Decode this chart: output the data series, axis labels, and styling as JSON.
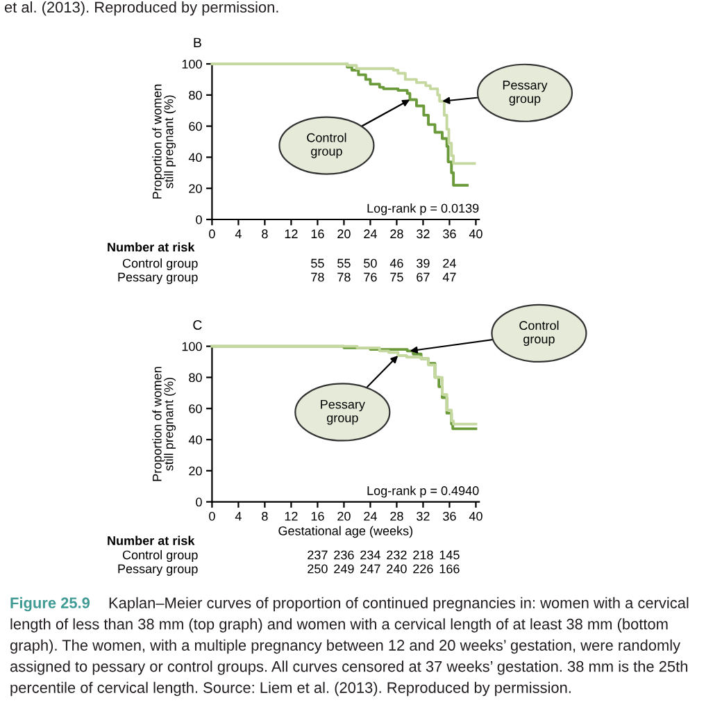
{
  "chart_data": [
    {
      "type": "step",
      "title": "B",
      "ylabel": "Proportion of women\nstill pregnant (%)",
      "xlim": [
        0,
        40.5
      ],
      "xticks": [
        0,
        4,
        8,
        12,
        16,
        20,
        24,
        28,
        32,
        36,
        40
      ],
      "ylim": [
        0,
        100
      ],
      "yticks": [
        0,
        20,
        40,
        60,
        80,
        100
      ],
      "series": [
        {
          "color": "#6b9a3a",
          "x": [
            0,
            20,
            20.5,
            21.2,
            22.2,
            23.3,
            24,
            25.4,
            26,
            28.2,
            29.6,
            30,
            31,
            32.1,
            32.8,
            33.8,
            34.9,
            35.6,
            35.8,
            36.3,
            36.6,
            38.7
          ],
          "values": [
            100,
            100,
            98,
            96,
            93,
            90,
            87,
            85,
            84,
            83,
            81,
            77,
            73,
            67,
            61,
            56,
            52,
            47,
            37,
            30,
            22,
            22
          ]
        },
        {
          "color": "#c5d8a0",
          "x": [
            0,
            20,
            20.5,
            21.9,
            27.5,
            28.2,
            29.3,
            31,
            32.4,
            33.1,
            34.2,
            34.5,
            35.2,
            35.6,
            35.9,
            36.3,
            36.6,
            39.8
          ],
          "values": [
            100,
            100,
            99,
            97,
            96,
            94,
            90,
            88,
            86,
            84,
            80,
            76,
            67,
            58,
            49,
            41,
            36,
            36
          ]
        }
      ],
      "annotations": [
        {
          "text": "Control group",
          "x": 30,
          "y": 77
        },
        {
          "text": "Pessary group",
          "x": 34.9,
          "y": 76
        },
        "Log-rank p = 0.0139",
        "et al. (2013). Reproduced by permission."
      ]
    },
    {
      "type": "other",
      "title": "Number at risk",
      "annotations": [
        "Control group",
        "55",
        "55",
        "50",
        "46",
        "39",
        "24",
        "Pessary group",
        "78",
        "78",
        "76",
        "75",
        "67",
        "47"
      ]
    },
    {
      "type": "step",
      "title": "C",
      "xlabel": "Gestational age (weeks)",
      "ylabel": "Proportion of women\nstill pregnant (%)",
      "xlim": [
        0,
        40.5
      ],
      "xticks": [
        0,
        4,
        8,
        12,
        16,
        20,
        24,
        28,
        32,
        36,
        40
      ],
      "ylim": [
        0,
        100
      ],
      "yticks": [
        0,
        20,
        40,
        60,
        80,
        100
      ],
      "series": [
        {
          "color": "#6b9a3a",
          "x": [
            0,
            12,
            20,
            24,
            27,
            29.6,
            30.5,
            31.7,
            32.8,
            33.8,
            34.4,
            34.9,
            35.6,
            36.3,
            36.5,
            40
          ],
          "values": [
            100,
            100,
            99,
            98,
            98,
            97,
            95,
            92,
            89,
            80,
            74,
            67,
            57,
            50,
            47,
            47
          ]
        },
        {
          "color": "#c5d8a0",
          "x": [
            0,
            16,
            22,
            25.4,
            26.8,
            28.2,
            29.5,
            31.7,
            32.8,
            33.8,
            34.9,
            35.6,
            36.3,
            36.6,
            40
          ],
          "values": [
            100,
            100,
            99,
            97,
            96,
            94,
            93,
            92,
            88,
            80,
            69,
            59,
            52,
            50,
            50
          ]
        }
      ],
      "annotations": [
        {
          "text": "Control group",
          "x": 30,
          "y": 97
        },
        {
          "text": "Pessary group",
          "x": 28.2,
          "y": 94
        },
        "Log-rank p = 0.4940",
        "Figure 25.9",
        "Kaplan–Meier curves of proportion of continued pregnancies in: women with a cervical",
        "length of less than 38 mm (top graph) and women with a cervical length of at least 38 mm (bottom\ngraph). The women, with a multiple pregnancy between 12 and 20 weeks’ gestation, were randomly\nassigned to pessary or control groups. All curves censored at 37 weeks’ gestation. 38 mm is the 25th\npercentile of cervical length. Source: Liem et al. (2013). Reproduced by permission."
      ]
    },
    {
      "type": "other",
      "title": "Number at risk",
      "annotations": [
        "Control group",
        "237",
        "236",
        "234",
        "232",
        "218",
        "145",
        "Pessary group",
        "250",
        "249",
        "247",
        "240",
        "226",
        "166"
      ]
    }
  ]
}
